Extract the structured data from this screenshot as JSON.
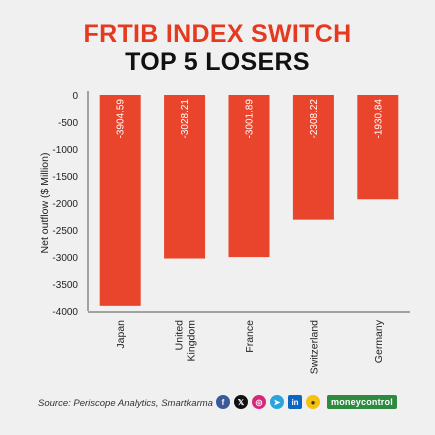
{
  "header": {
    "title_line1": "FRTIB INDEX SWITCH",
    "title_line2": "TOP 5 LOSERS"
  },
  "footer": {
    "source": "Source: Periscope Analytics, Smartkarma",
    "brand": "moneycontrol",
    "social_icons": [
      "facebook-icon",
      "x-icon",
      "instagram-icon",
      "telegram-icon",
      "linkedin-icon",
      "koo-icon"
    ]
  },
  "colors": {
    "bar": "#e8452c",
    "title_accent": "#e53a1f",
    "brand_green": "#2d8a3e"
  },
  "chart_data": {
    "type": "bar",
    "title": "FRTIB INDEX SWITCH TOP 5 LOSERS",
    "categories": [
      "Japan",
      "United Kingdom",
      "France",
      "Switzerland",
      "Germany"
    ],
    "category_labels": [
      [
        "Japan"
      ],
      [
        "United",
        "Kingdom"
      ],
      [
        "France"
      ],
      [
        "Switzerland"
      ],
      [
        "Germany"
      ]
    ],
    "values": [
      -3904.59,
      -3028.21,
      -3001.89,
      -2308.22,
      -1930.84
    ],
    "value_labels": [
      "-3904.59",
      "-3028.21",
      "-3001.89",
      "-2308.22",
      "-1930.84"
    ],
    "ylabel": "Net outflow ($ Million)",
    "xlabel": "",
    "ylim": [
      -4000,
      0
    ],
    "yticks": [
      0,
      -500,
      -1000,
      -1500,
      -2000,
      -2500,
      -3000,
      -3500,
      -4000
    ],
    "grid": false,
    "legend": "none"
  }
}
